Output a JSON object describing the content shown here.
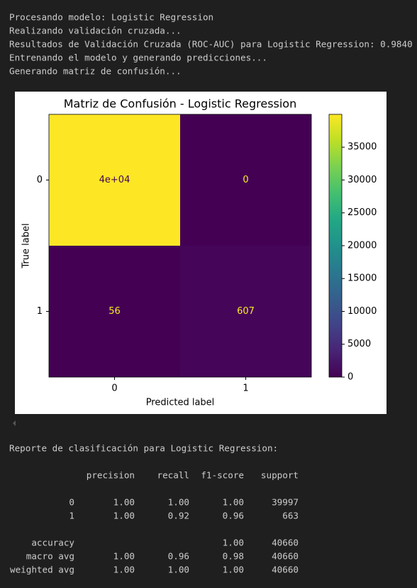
{
  "log_lines": [
    "Procesando modelo: Logistic Regression",
    "Realizando validación cruzada...",
    "Resultados de Validación Cruzada (ROC-AUC) para Logistic Regression: 0.9840",
    "Entrenando el modelo y generando predicciones...",
    "Generando matriz de confusión..."
  ],
  "chart_data": {
    "type": "heatmap",
    "title": "Matriz de Confusión - Logistic Regression",
    "x_label": "Predicted label",
    "y_label": "True label",
    "x_categories": [
      "0",
      "1"
    ],
    "y_categories": [
      "0",
      "1"
    ],
    "values": [
      [
        39997,
        0
      ],
      [
        56,
        607
      ]
    ],
    "value_labels": [
      [
        "4e+04",
        "0"
      ],
      [
        "56",
        "607"
      ]
    ],
    "colormap": "viridis",
    "colorbar_lim": [
      0,
      39997
    ],
    "colorbar_ticks": [
      0,
      5000,
      10000,
      15000,
      20000,
      25000,
      30000,
      35000
    ]
  },
  "report": {
    "title": "Reporte de clasificación para Logistic Regression:",
    "headers": [
      "precision",
      "recall",
      "f1-score",
      "support"
    ],
    "rows": [
      [
        "0",
        "1.00",
        "1.00",
        "1.00",
        "39997"
      ],
      [
        "1",
        "1.00",
        "0.92",
        "0.96",
        "663"
      ],
      [
        "accuracy",
        null,
        null,
        "1.00",
        "40660"
      ],
      [
        "macro avg",
        "1.00",
        "0.96",
        "0.98",
        "40660"
      ],
      [
        "weighted avg",
        "1.00",
        "1.00",
        "1.00",
        "40660"
      ]
    ]
  }
}
